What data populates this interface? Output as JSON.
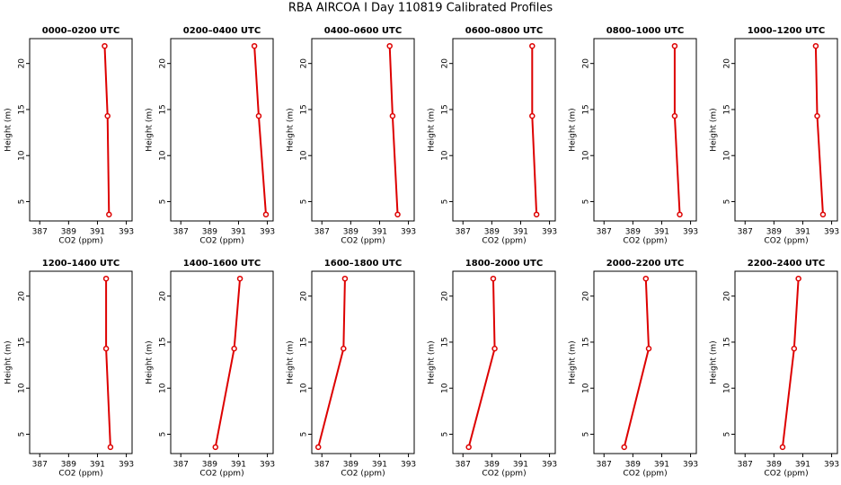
{
  "title": "RBA AIRCOA I  Day 110819  Calibrated Profiles",
  "chart_data": [
    {
      "type": "line",
      "title": "0000–0200 UTC",
      "xlabel": "CO2 (ppm)",
      "ylabel": "Height (m)",
      "x": [
        391.8,
        391.7,
        391.5
      ],
      "series": [
        {
          "color": "#dd0000",
          "values": [
            3.6,
            14.3,
            21.9
          ]
        }
      ],
      "xlim": [
        386.3,
        393.4
      ],
      "ylim": [
        2.9,
        22.7
      ],
      "xticks": [
        387,
        389,
        391,
        393
      ],
      "yticks": [
        5,
        10,
        15,
        20
      ]
    },
    {
      "type": "line",
      "title": "0200–0400 UTC",
      "xlabel": "CO2 (ppm)",
      "ylabel": "Height (m)",
      "x": [
        392.9,
        392.4,
        392.1
      ],
      "series": [
        {
          "color": "#dd0000",
          "values": [
            3.6,
            14.3,
            21.9
          ]
        }
      ],
      "xlim": [
        386.3,
        393.4
      ],
      "ylim": [
        2.9,
        22.7
      ],
      "xticks": [
        387,
        389,
        391,
        393
      ],
      "yticks": [
        5,
        10,
        15,
        20
      ]
    },
    {
      "type": "line",
      "title": "0400–0600 UTC",
      "xlabel": "CO2 (ppm)",
      "ylabel": "Height (m)",
      "x": [
        392.25,
        391.9,
        391.7
      ],
      "series": [
        {
          "color": "#dd0000",
          "values": [
            3.6,
            14.3,
            21.9
          ]
        }
      ],
      "xlim": [
        386.3,
        393.4
      ],
      "ylim": [
        2.9,
        22.7
      ],
      "xticks": [
        387,
        389,
        391,
        393
      ],
      "yticks": [
        5,
        10,
        15,
        20
      ]
    },
    {
      "type": "line",
      "title": "0600–0800 UTC",
      "xlabel": "CO2 (ppm)",
      "ylabel": "Height (m)",
      "x": [
        392.1,
        391.8,
        391.8
      ],
      "series": [
        {
          "color": "#dd0000",
          "values": [
            3.6,
            14.3,
            21.9
          ]
        }
      ],
      "xlim": [
        386.3,
        393.4
      ],
      "ylim": [
        2.9,
        22.7
      ],
      "xticks": [
        387,
        389,
        391,
        393
      ],
      "yticks": [
        5,
        10,
        15,
        20
      ]
    },
    {
      "type": "line",
      "title": "0800–1000 UTC",
      "xlabel": "CO2 (ppm)",
      "ylabel": "Height (m)",
      "x": [
        392.25,
        391.9,
        391.9
      ],
      "series": [
        {
          "color": "#dd0000",
          "values": [
            3.6,
            14.3,
            21.9
          ]
        }
      ],
      "xlim": [
        386.3,
        393.4
      ],
      "ylim": [
        2.9,
        22.7
      ],
      "xticks": [
        387,
        389,
        391,
        393
      ],
      "yticks": [
        5,
        10,
        15,
        20
      ]
    },
    {
      "type": "line",
      "title": "1000–1200 UTC",
      "xlabel": "CO2 (ppm)",
      "ylabel": "Height (m)",
      "x": [
        392.4,
        392.0,
        391.9
      ],
      "series": [
        {
          "color": "#dd0000",
          "values": [
            3.6,
            14.3,
            21.9
          ]
        }
      ],
      "xlim": [
        386.3,
        393.4
      ],
      "ylim": [
        2.9,
        22.7
      ],
      "xticks": [
        387,
        389,
        391,
        393
      ],
      "yticks": [
        5,
        10,
        15,
        20
      ]
    },
    {
      "type": "line",
      "title": "1200–1400 UTC",
      "xlabel": "CO2 (ppm)",
      "ylabel": "Height (m)",
      "x": [
        391.9,
        391.6,
        391.6
      ],
      "series": [
        {
          "color": "#dd0000",
          "values": [
            3.6,
            14.3,
            21.9
          ]
        }
      ],
      "xlim": [
        386.3,
        393.4
      ],
      "ylim": [
        2.9,
        22.7
      ],
      "xticks": [
        387,
        389,
        391,
        393
      ],
      "yticks": [
        5,
        10,
        15,
        20
      ]
    },
    {
      "type": "line",
      "title": "1400–1600 UTC",
      "xlabel": "CO2 (ppm)",
      "ylabel": "Height (m)",
      "x": [
        389.4,
        390.7,
        391.1
      ],
      "series": [
        {
          "color": "#dd0000",
          "values": [
            3.6,
            14.3,
            21.9
          ]
        }
      ],
      "xlim": [
        386.3,
        393.4
      ],
      "ylim": [
        2.9,
        22.7
      ],
      "xticks": [
        387,
        389,
        391,
        393
      ],
      "yticks": [
        5,
        10,
        15,
        20
      ]
    },
    {
      "type": "line",
      "title": "1600–1800 UTC",
      "xlabel": "CO2 (ppm)",
      "ylabel": "Height (m)",
      "x": [
        386.75,
        388.5,
        388.6
      ],
      "series": [
        {
          "color": "#dd0000",
          "values": [
            3.6,
            14.3,
            21.9
          ]
        }
      ],
      "xlim": [
        386.3,
        393.4
      ],
      "ylim": [
        2.9,
        22.7
      ],
      "xticks": [
        387,
        389,
        391,
        393
      ],
      "yticks": [
        5,
        10,
        15,
        20
      ]
    },
    {
      "type": "line",
      "title": "1800–2000 UTC",
      "xlabel": "CO2 (ppm)",
      "ylabel": "Height (m)",
      "x": [
        387.4,
        389.2,
        389.1
      ],
      "series": [
        {
          "color": "#dd0000",
          "values": [
            3.6,
            14.3,
            21.9
          ]
        }
      ],
      "xlim": [
        386.3,
        393.4
      ],
      "ylim": [
        2.9,
        22.7
      ],
      "xticks": [
        387,
        389,
        391,
        393
      ],
      "yticks": [
        5,
        10,
        15,
        20
      ]
    },
    {
      "type": "line",
      "title": "2000–2200 UTC",
      "xlabel": "CO2 (ppm)",
      "ylabel": "Height (m)",
      "x": [
        388.4,
        390.1,
        389.9
      ],
      "series": [
        {
          "color": "#dd0000",
          "values": [
            3.6,
            14.3,
            21.9
          ]
        }
      ],
      "xlim": [
        386.3,
        393.4
      ],
      "ylim": [
        2.9,
        22.7
      ],
      "xticks": [
        387,
        389,
        391,
        393
      ],
      "yticks": [
        5,
        10,
        15,
        20
      ]
    },
    {
      "type": "line",
      "title": "2200–2400 UTC",
      "xlabel": "CO2 (ppm)",
      "ylabel": "Height (m)",
      "x": [
        389.6,
        390.4,
        390.7
      ],
      "series": [
        {
          "color": "#dd0000",
          "values": [
            3.6,
            14.3,
            21.9
          ]
        }
      ],
      "xlim": [
        386.3,
        393.4
      ],
      "ylim": [
        2.9,
        22.7
      ],
      "xticks": [
        387,
        389,
        391,
        393
      ],
      "yticks": [
        5,
        10,
        15,
        20
      ]
    }
  ]
}
